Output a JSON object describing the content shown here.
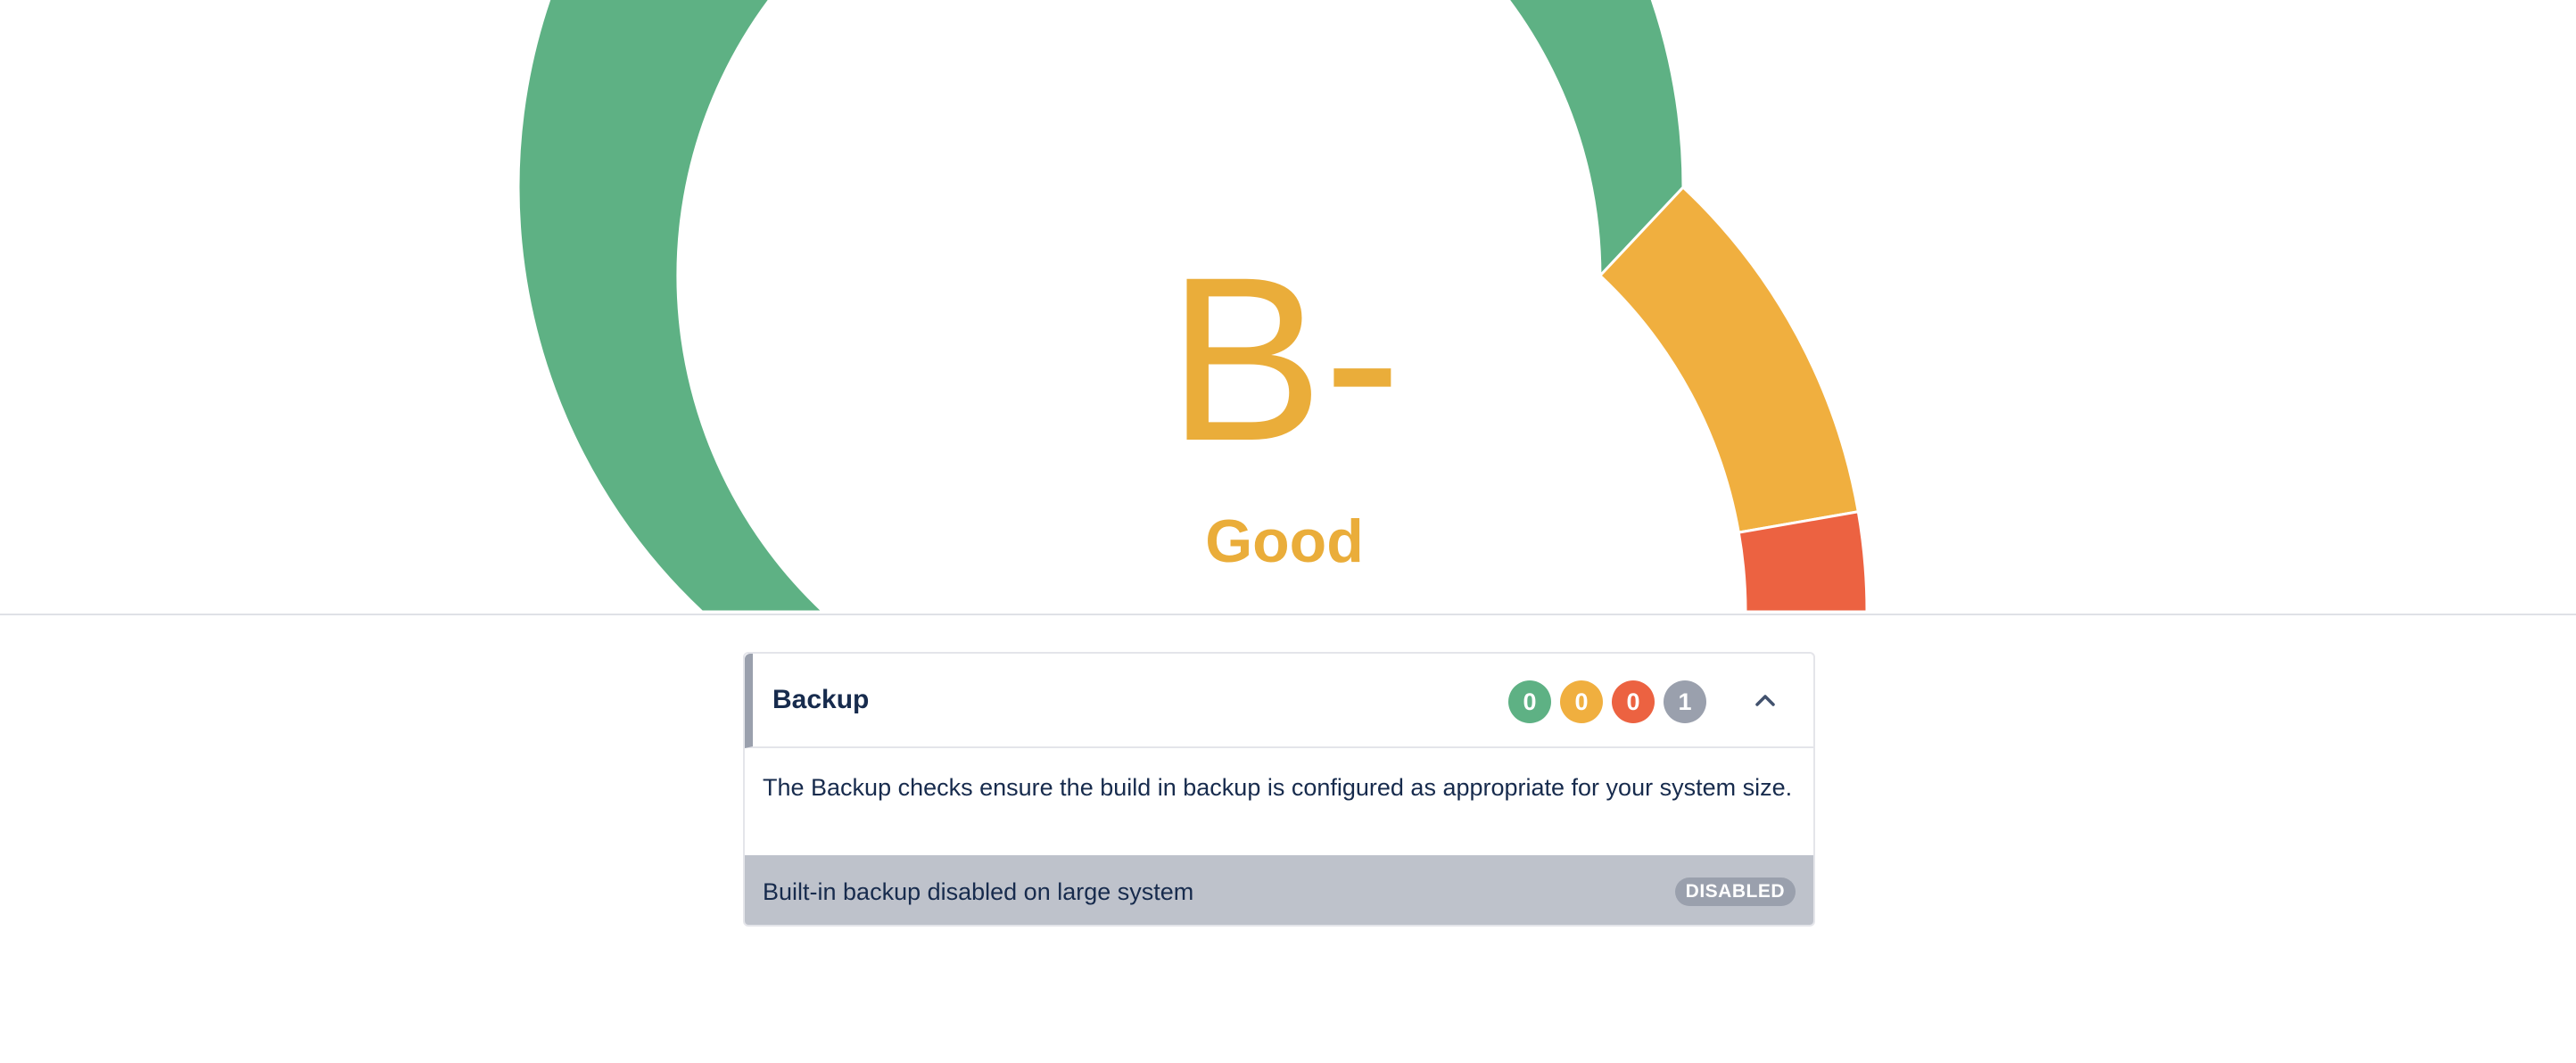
{
  "gauge": {
    "grade": "B-",
    "rating": "Good",
    "grade_color": "#EAAD3A",
    "segments": [
      {
        "status": "good",
        "fraction": 0.74,
        "color": "#5EB184"
      },
      {
        "status": "warning",
        "fraction": 0.205,
        "color": "#F0AF3F"
      },
      {
        "status": "critical",
        "fraction": 0.055,
        "color": "#EC6241"
      }
    ]
  },
  "card": {
    "title": "Backup",
    "counts": [
      {
        "status": "passed",
        "value": "0",
        "color": "#5EB184"
      },
      {
        "status": "warning",
        "value": "0",
        "color": "#F0AF3F"
      },
      {
        "status": "critical",
        "value": "0",
        "color": "#EC6241"
      },
      {
        "status": "disabled",
        "value": "1",
        "color": "#9AA0AD"
      }
    ],
    "expanded": true,
    "collapse_icon": "chevron-up-icon",
    "description": "The Backup checks ensure the build in backup is configured as appropriate for your system size.",
    "checks": [
      {
        "label": "Built-in backup disabled on large system",
        "status": "DISABLED"
      }
    ]
  }
}
